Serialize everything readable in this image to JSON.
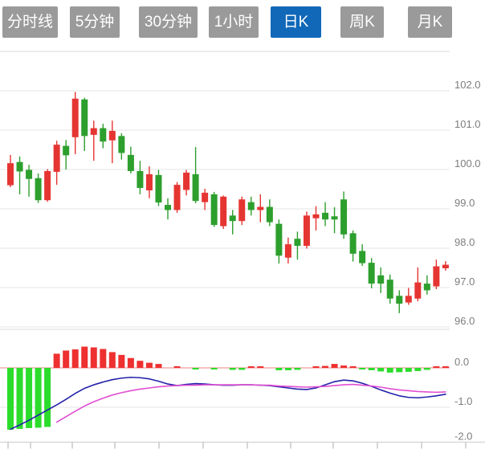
{
  "toolbar": {
    "tabs": [
      {
        "label": "分时线",
        "active": false
      },
      {
        "label": "5分钟",
        "active": false
      },
      {
        "label": "30分钟",
        "active": false
      },
      {
        "label": "1小时",
        "active": false
      },
      {
        "label": "日K",
        "active": true
      },
      {
        "label": "周K",
        "active": false
      },
      {
        "label": "月K",
        "active": false
      }
    ]
  },
  "colors": {
    "candle_up": "#e53532",
    "candle_down": "#2d9f2d",
    "hist_positive": "#ee3030",
    "hist_negative": "#2cdc2c",
    "dif_line": "#2222aa",
    "dea_line": "#e14fd2",
    "grid_line": "#e4e4e4",
    "axis_border": "#d9d9d9",
    "zero_line": "#f08080",
    "axis_label": "#7d7d7d",
    "tab_bg": "#9a9a9a",
    "tab_active_bg": "#1268b8",
    "tab_text": "#ffffff"
  },
  "chart_data": {
    "type": "candlestick_with_macd",
    "title": "",
    "legend": [],
    "grid": true,
    "price_panel": {
      "y_tick_labels": [
        "102.0",
        "101.0",
        "100.0",
        "99.0",
        "98.0",
        "97.0",
        "96.0"
      ],
      "y_tick_values": [
        102.0,
        101.0,
        100.0,
        99.0,
        98.0,
        97.0,
        96.0
      ],
      "ylim": [
        95.9,
        103.0
      ]
    },
    "macd_panel": {
      "y_tick_labels": [
        "0.0",
        "-1.0",
        "-2.0"
      ],
      "y_tick_values": [
        0.0,
        -1.0,
        -2.0
      ],
      "ylim": [
        -2.0,
        0.45
      ]
    },
    "candles": [
      {
        "o": 99.6,
        "h": 100.37,
        "l": 99.55,
        "c": 100.16
      },
      {
        "o": 100.19,
        "h": 100.33,
        "l": 99.37,
        "c": 99.95
      },
      {
        "o": 99.99,
        "h": 100.12,
        "l": 99.31,
        "c": 99.76
      },
      {
        "o": 99.78,
        "h": 99.9,
        "l": 99.15,
        "c": 99.22
      },
      {
        "o": 99.22,
        "h": 100.01,
        "l": 99.18,
        "c": 99.96
      },
      {
        "o": 99.94,
        "h": 100.73,
        "l": 99.61,
        "c": 100.63
      },
      {
        "o": 100.6,
        "h": 100.75,
        "l": 100.0,
        "c": 100.36
      },
      {
        "o": 100.82,
        "h": 101.97,
        "l": 100.39,
        "c": 101.8
      },
      {
        "o": 101.78,
        "h": 101.82,
        "l": 100.47,
        "c": 100.85
      },
      {
        "o": 100.88,
        "h": 101.24,
        "l": 100.22,
        "c": 101.05
      },
      {
        "o": 101.05,
        "h": 101.16,
        "l": 100.54,
        "c": 100.71
      },
      {
        "o": 100.74,
        "h": 101.24,
        "l": 100.16,
        "c": 100.98
      },
      {
        "o": 100.85,
        "h": 100.92,
        "l": 100.25,
        "c": 100.42
      },
      {
        "o": 100.37,
        "h": 100.58,
        "l": 99.9,
        "c": 99.96
      },
      {
        "o": 99.96,
        "h": 100.22,
        "l": 99.37,
        "c": 99.53
      },
      {
        "o": 99.47,
        "h": 100.08,
        "l": 99.27,
        "c": 99.88
      },
      {
        "o": 99.86,
        "h": 99.99,
        "l": 99.07,
        "c": 99.16
      },
      {
        "o": 99.1,
        "h": 99.27,
        "l": 98.73,
        "c": 98.97
      },
      {
        "o": 98.97,
        "h": 99.68,
        "l": 98.9,
        "c": 99.61
      },
      {
        "o": 99.48,
        "h": 99.99,
        "l": 99.34,
        "c": 99.92
      },
      {
        "o": 99.88,
        "h": 100.57,
        "l": 99.14,
        "c": 99.2
      },
      {
        "o": 99.17,
        "h": 99.51,
        "l": 98.97,
        "c": 99.41
      },
      {
        "o": 99.37,
        "h": 99.43,
        "l": 98.54,
        "c": 98.59
      },
      {
        "o": 98.56,
        "h": 99.34,
        "l": 98.49,
        "c": 99.31
      },
      {
        "o": 98.83,
        "h": 98.97,
        "l": 98.35,
        "c": 98.69
      },
      {
        "o": 98.69,
        "h": 99.31,
        "l": 98.59,
        "c": 99.24
      },
      {
        "o": 99.17,
        "h": 99.31,
        "l": 98.83,
        "c": 98.97
      },
      {
        "o": 98.97,
        "h": 99.37,
        "l": 98.66,
        "c": 99.05
      },
      {
        "o": 99.05,
        "h": 99.24,
        "l": 98.56,
        "c": 98.66
      },
      {
        "o": 98.62,
        "h": 98.73,
        "l": 97.61,
        "c": 97.81
      },
      {
        "o": 97.76,
        "h": 98.27,
        "l": 97.61,
        "c": 98.1
      },
      {
        "o": 98.24,
        "h": 98.42,
        "l": 97.71,
        "c": 98.06
      },
      {
        "o": 98.06,
        "h": 98.93,
        "l": 97.99,
        "c": 98.83
      },
      {
        "o": 98.76,
        "h": 99.07,
        "l": 98.45,
        "c": 98.86
      },
      {
        "o": 98.9,
        "h": 99.17,
        "l": 98.56,
        "c": 98.73
      },
      {
        "o": 98.81,
        "h": 99.04,
        "l": 98.38,
        "c": 98.73
      },
      {
        "o": 99.24,
        "h": 99.44,
        "l": 98.24,
        "c": 98.35
      },
      {
        "o": 98.38,
        "h": 98.45,
        "l": 97.66,
        "c": 97.86
      },
      {
        "o": 97.93,
        "h": 98.1,
        "l": 97.55,
        "c": 97.62
      },
      {
        "o": 97.63,
        "h": 97.75,
        "l": 96.98,
        "c": 97.1
      },
      {
        "o": 97.31,
        "h": 97.51,
        "l": 96.86,
        "c": 97.1
      },
      {
        "o": 97.2,
        "h": 97.33,
        "l": 96.59,
        "c": 96.72
      },
      {
        "o": 96.79,
        "h": 96.93,
        "l": 96.35,
        "c": 96.59
      },
      {
        "o": 96.62,
        "h": 96.99,
        "l": 96.56,
        "c": 96.79
      },
      {
        "o": 96.72,
        "h": 97.51,
        "l": 96.65,
        "c": 97.13
      },
      {
        "o": 97.1,
        "h": 97.31,
        "l": 96.82,
        "c": 96.93
      },
      {
        "o": 97.03,
        "h": 97.71,
        "l": 96.96,
        "c": 97.54
      },
      {
        "o": 97.49,
        "h": 97.67,
        "l": 97.43,
        "c": 97.58
      }
    ],
    "macd_hist": [
      -1.57,
      -1.55,
      -1.53,
      -1.52,
      -1.5,
      0.36,
      0.44,
      0.47,
      0.54,
      0.52,
      0.48,
      0.4,
      0.33,
      0.25,
      0.18,
      0.13,
      0.1,
      0,
      0.03,
      0,
      -0.04,
      0,
      -0.04,
      0,
      -0.05,
      -0.05,
      0.04,
      0.03,
      0,
      -0.06,
      -0.06,
      -0.05,
      0,
      0.04,
      0.05,
      0.1,
      0.06,
      0.03,
      -0.04,
      -0.06,
      -0.09,
      -0.12,
      -0.11,
      -0.1,
      -0.08,
      -0.05,
      0.04,
      0.03
    ],
    "dif": [
      -1.56,
      -1.45,
      -1.33,
      -1.2,
      -1.07,
      -0.94,
      -0.8,
      -0.65,
      -0.52,
      -0.43,
      -0.36,
      -0.3,
      -0.26,
      -0.24,
      -0.25,
      -0.28,
      -0.34,
      -0.41,
      -0.45,
      -0.42,
      -0.4,
      -0.41,
      -0.43,
      -0.44,
      -0.44,
      -0.43,
      -0.43,
      -0.44,
      -0.45,
      -0.48,
      -0.51,
      -0.54,
      -0.55,
      -0.51,
      -0.43,
      -0.35,
      -0.31,
      -0.33,
      -0.39,
      -0.47,
      -0.56,
      -0.64,
      -0.71,
      -0.75,
      -0.76,
      -0.74,
      -0.71,
      -0.67
    ],
    "dea": [
      null,
      null,
      null,
      null,
      null,
      -1.38,
      -1.24,
      -1.1,
      -0.97,
      -0.86,
      -0.77,
      -0.69,
      -0.63,
      -0.58,
      -0.54,
      -0.51,
      -0.48,
      -0.46,
      -0.45,
      -0.44,
      -0.44,
      -0.43,
      -0.43,
      -0.43,
      -0.43,
      -0.43,
      -0.43,
      -0.44,
      -0.44,
      -0.46,
      -0.47,
      -0.48,
      -0.49,
      -0.48,
      -0.47,
      -0.45,
      -0.43,
      -0.42,
      -0.44,
      -0.46,
      -0.49,
      -0.53,
      -0.56,
      -0.58,
      -0.6,
      -0.61,
      -0.62,
      -0.61
    ]
  }
}
